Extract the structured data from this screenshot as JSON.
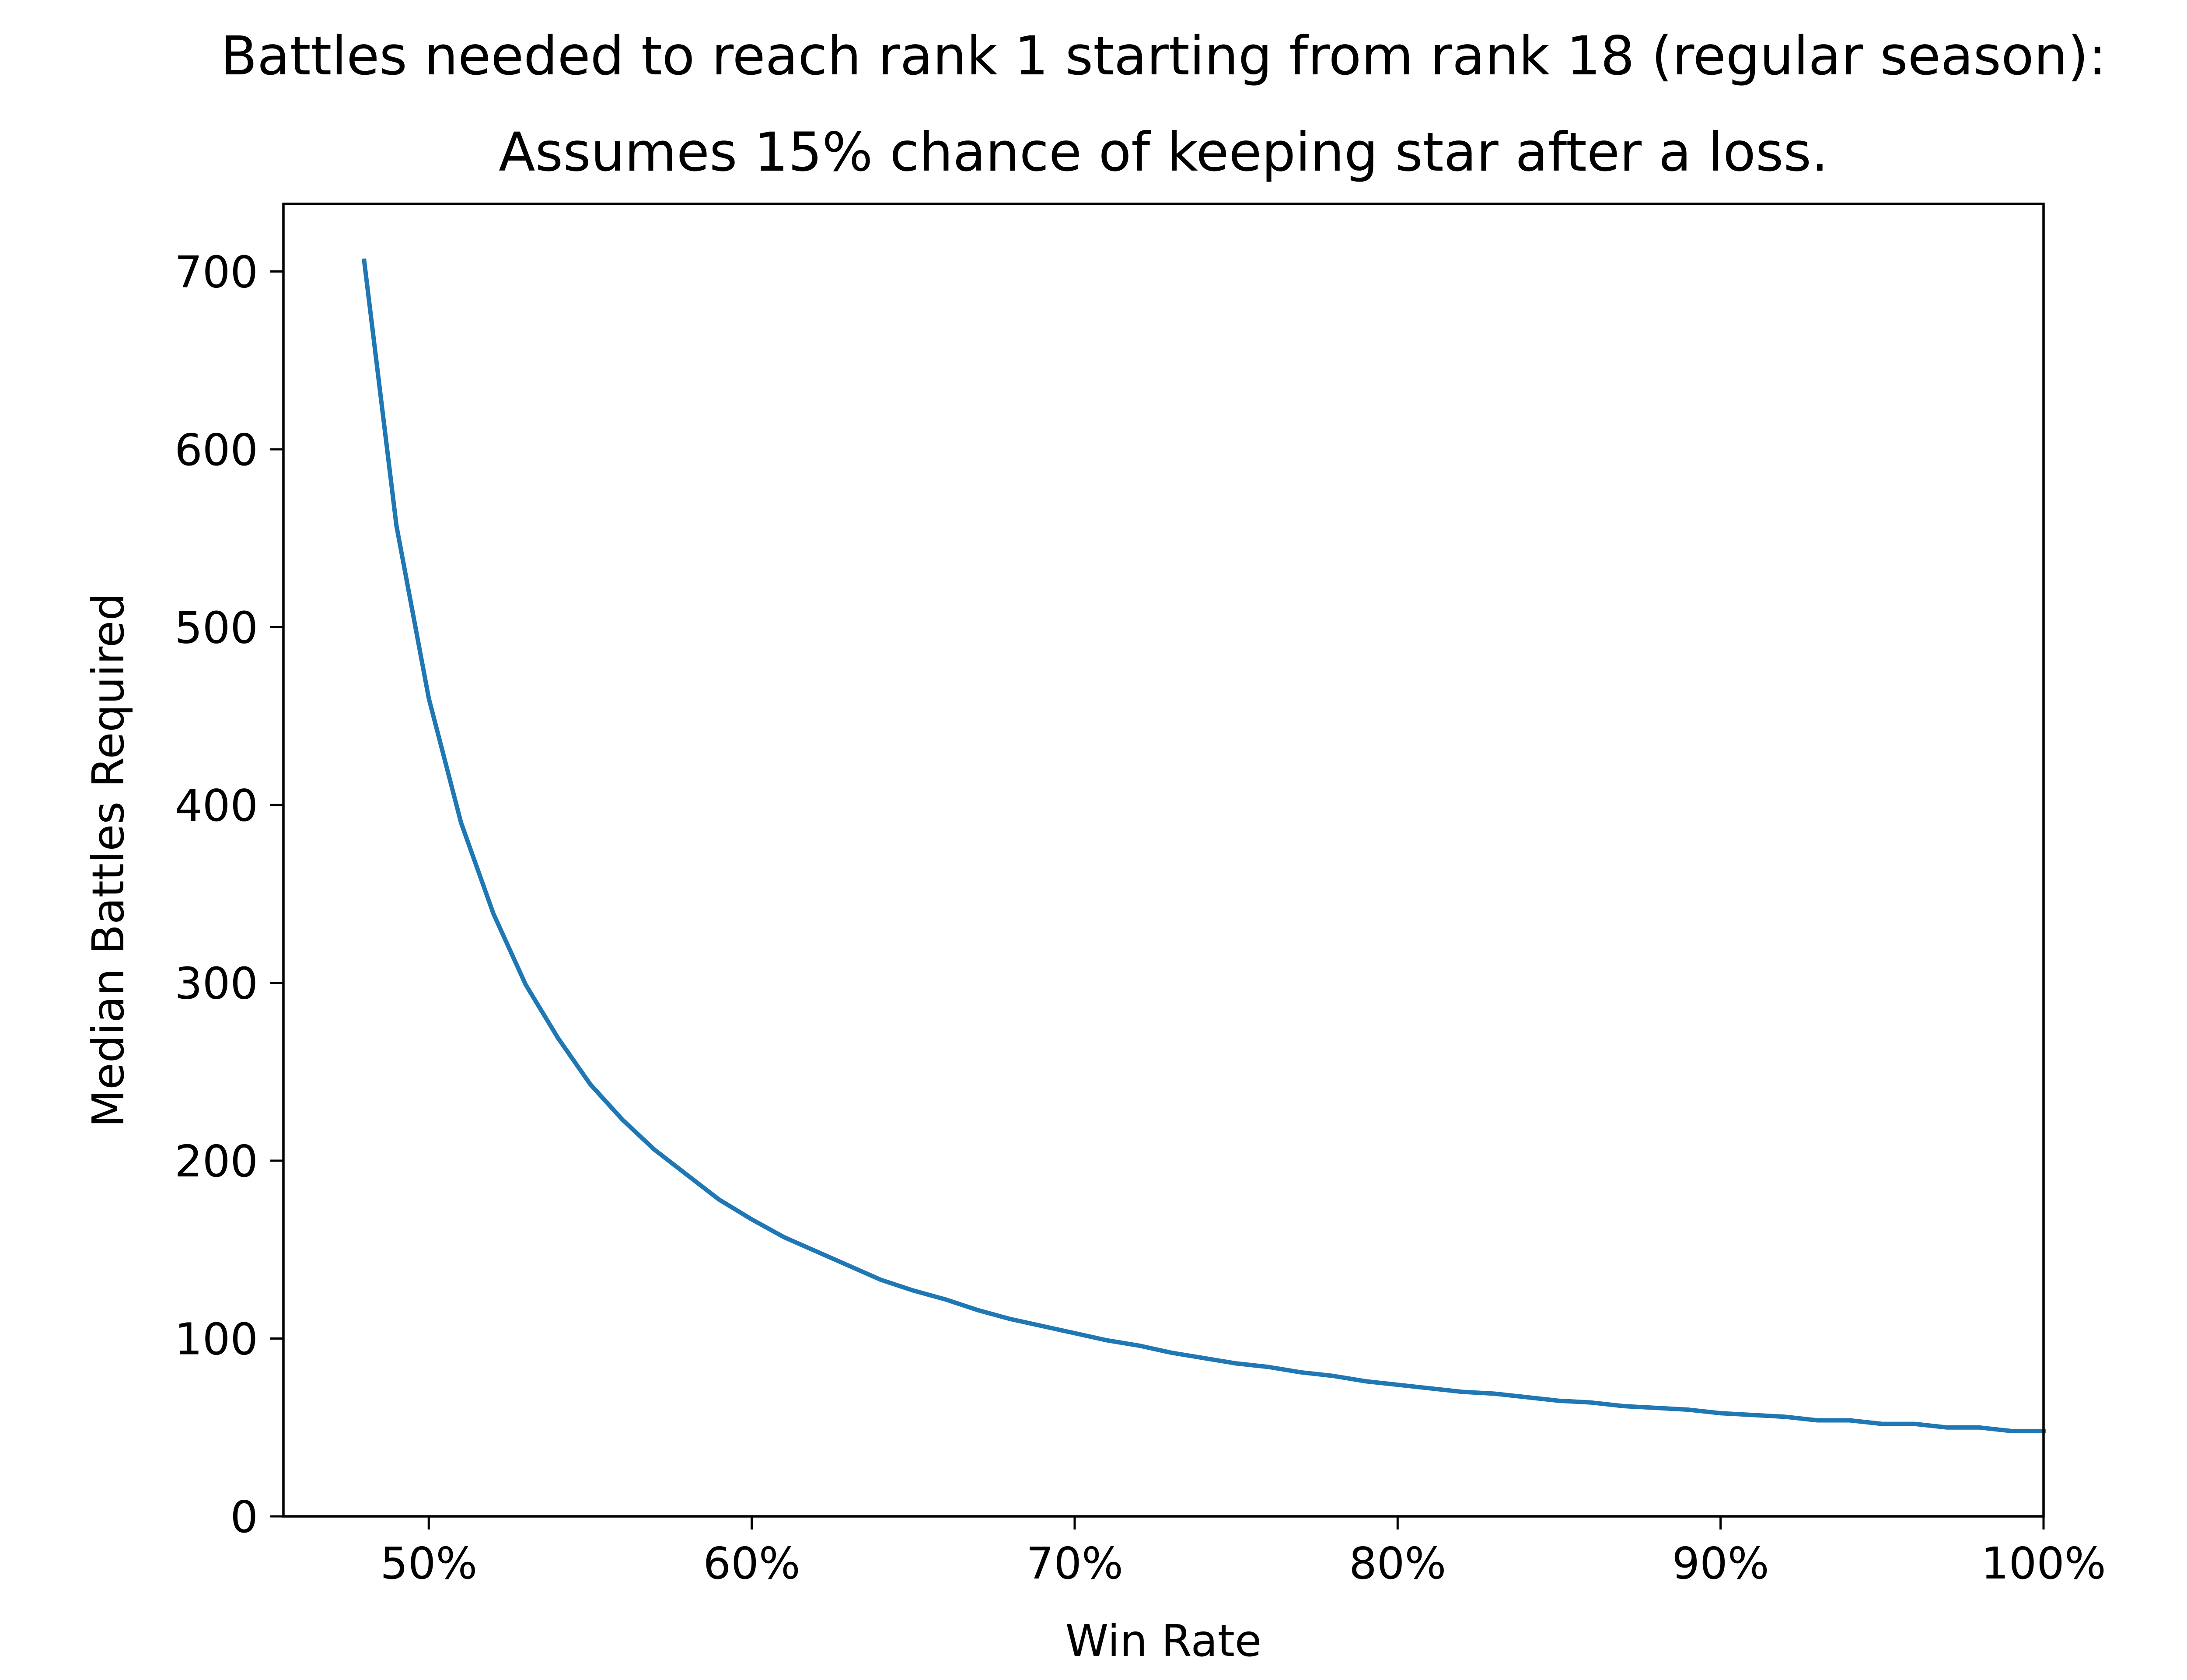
{
  "chart_data": {
    "type": "line",
    "title": "Battles needed to reach rank 1 starting from rank 18 (regular season):",
    "subtitle": "Assumes 15% chance of keeping star after a loss.",
    "xlabel": "Win Rate",
    "ylabel": "Median Battles Required",
    "xlim": [
      0.455,
      1.0
    ],
    "ylim": [
      0,
      738
    ],
    "x_ticks": [
      0.5,
      0.6,
      0.7,
      0.8,
      0.9,
      1.0
    ],
    "x_tick_labels": [
      "50%",
      "60%",
      "70%",
      "80%",
      "90%",
      "100%"
    ],
    "y_ticks": [
      0,
      100,
      200,
      300,
      400,
      500,
      600,
      700
    ],
    "y_tick_labels": [
      "0",
      "100",
      "200",
      "300",
      "400",
      "500",
      "600",
      "700"
    ],
    "grid": false,
    "series": [
      {
        "color": "#1f77b4",
        "x": [
          0.48,
          0.49,
          0.5,
          0.51,
          0.52,
          0.53,
          0.54,
          0.55,
          0.56,
          0.57,
          0.58,
          0.59,
          0.6,
          0.61,
          0.62,
          0.63,
          0.64,
          0.65,
          0.66,
          0.67,
          0.68,
          0.69,
          0.7,
          0.71,
          0.72,
          0.73,
          0.74,
          0.75,
          0.76,
          0.77,
          0.78,
          0.79,
          0.8,
          0.81,
          0.82,
          0.83,
          0.84,
          0.85,
          0.86,
          0.87,
          0.88,
          0.89,
          0.9,
          0.91,
          0.92,
          0.93,
          0.94,
          0.95,
          0.96,
          0.97,
          0.98,
          0.99,
          1.0
        ],
        "y": [
          706,
          557,
          460,
          390,
          339,
          299,
          269,
          243,
          223,
          206,
          192,
          178,
          167,
          157,
          149,
          141,
          133,
          127,
          122,
          116,
          111,
          107,
          103,
          99,
          96,
          92,
          89,
          86,
          84,
          81,
          79,
          76,
          74,
          72,
          70,
          69,
          67,
          65,
          64,
          62,
          61,
          60,
          58,
          57,
          56,
          54,
          54,
          52,
          52,
          50,
          50,
          48,
          48
        ]
      }
    ]
  }
}
